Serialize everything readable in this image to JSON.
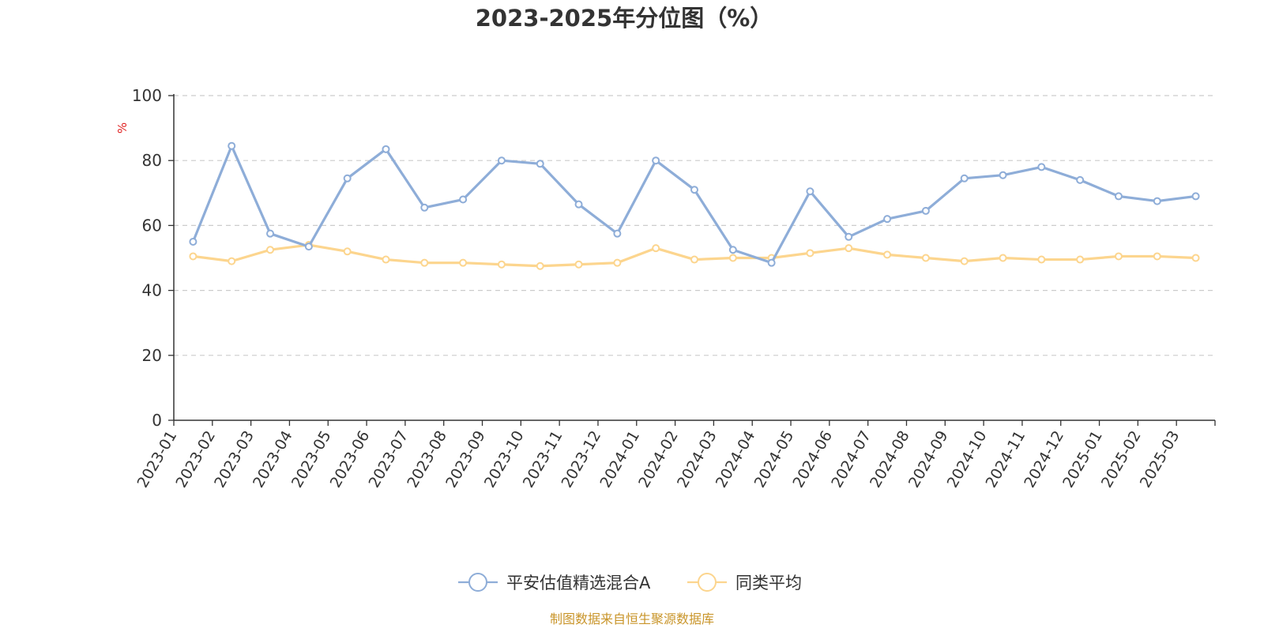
{
  "chart_data": {
    "type": "line",
    "title": "2023-2025年分位图（%）",
    "y_unit": "%",
    "ylim": [
      0,
      100
    ],
    "y_ticks": [
      0,
      20,
      40,
      60,
      80,
      100
    ],
    "grid": "horizontal dashed",
    "legend_position": "bottom-center",
    "categories": [
      "2023-01",
      "2023-02",
      "2023-03",
      "2023-04",
      "2023-05",
      "2023-06",
      "2023-07",
      "2023-08",
      "2023-09",
      "2023-10",
      "2023-11",
      "2023-12",
      "2024-01",
      "2024-02",
      "2024-03",
      "2024-04",
      "2024-05",
      "2024-06",
      "2024-07",
      "2024-08",
      "2024-09",
      "2024-10",
      "2024-11",
      "2024-12",
      "2025-01",
      "2025-02",
      "2025-03"
    ],
    "series": [
      {
        "name": "平安估值精选混合A",
        "color": "#8eadd8",
        "values": [
          55,
          84.5,
          57.5,
          53.5,
          74.5,
          83.5,
          65.5,
          68,
          80,
          79,
          66.5,
          57.5,
          80,
          71,
          52.5,
          48.5,
          70.5,
          56.5,
          62,
          64.5,
          74.5,
          75.5,
          78,
          74,
          69,
          67.5,
          69
        ]
      },
      {
        "name": "同类平均",
        "color": "#fcd58e",
        "values": [
          50.5,
          49,
          52.5,
          54,
          52,
          49.5,
          48.5,
          48.5,
          48,
          47.5,
          48,
          48.5,
          53,
          49.5,
          50,
          50,
          51.5,
          53,
          51,
          50,
          49,
          50,
          49.5,
          49.5,
          50.5,
          50.5,
          50
        ]
      }
    ]
  },
  "source_note": "制图数据来自恒生聚源数据库"
}
